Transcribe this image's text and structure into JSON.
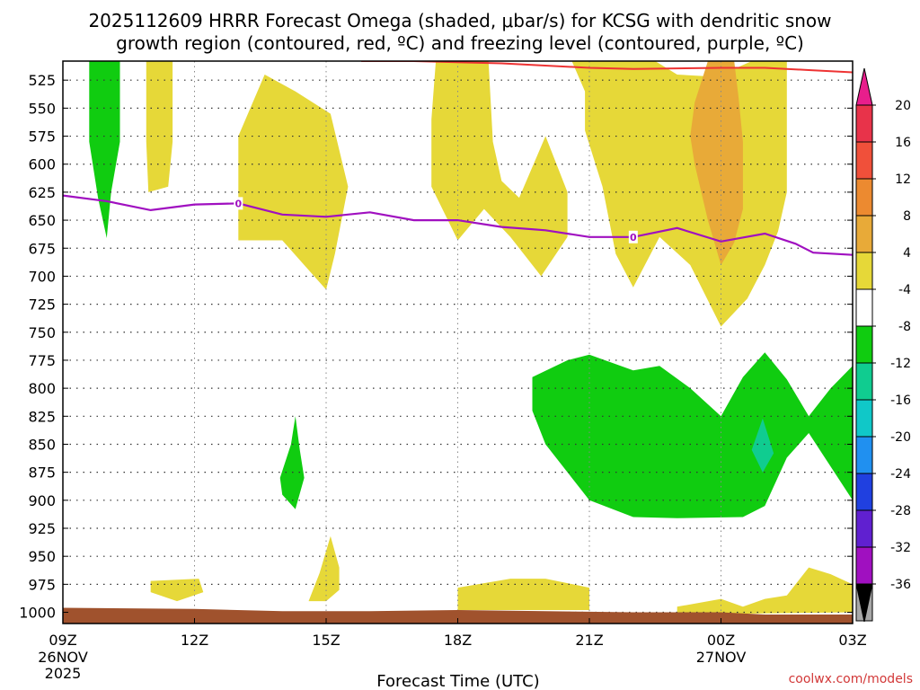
{
  "chart_data": {
    "type": "time-height cross section",
    "title_line1": "2025112609 HRRR Forecast Omega (shaded, μbar/s) for KCSG with dendritic snow",
    "title_line2": "growth region (contoured, red, ºC) and freezing level (contoured, purple, ºC)",
    "xlabel": "Forecast Time (UTC)",
    "credit": "coolwx.com/models",
    "x_range_hours": [
      0,
      18
    ],
    "y_range_hPa": [
      508,
      1010
    ],
    "x_ticks": [
      {
        "hour": 0,
        "label": "09Z",
        "sub1": "26NOV",
        "sub2": "2025"
      },
      {
        "hour": 3,
        "label": "12Z"
      },
      {
        "hour": 6,
        "label": "15Z"
      },
      {
        "hour": 9,
        "label": "18Z"
      },
      {
        "hour": 12,
        "label": "21Z"
      },
      {
        "hour": 15,
        "label": "00Z",
        "sub1": "27NOV"
      },
      {
        "hour": 18,
        "label": "03Z"
      }
    ],
    "y_ticks": [
      525,
      550,
      575,
      600,
      625,
      650,
      675,
      700,
      725,
      750,
      775,
      800,
      825,
      850,
      875,
      900,
      925,
      950,
      975,
      1000
    ],
    "colorbar": {
      "levels": [
        20,
        16,
        12,
        8,
        4,
        -4,
        -8,
        -12,
        -16,
        -20,
        -24,
        -28,
        -32,
        -36
      ],
      "colors": [
        "#e8334a",
        "#f0503a",
        "#ec8a30",
        "#e8aa38",
        "#e6d838",
        "#ffffff",
        "#10cc10",
        "#10cc90",
        "#10c8c8",
        "#2090f0",
        "#2040e0",
        "#6020d0",
        "#a010c0",
        "#a8a8a8"
      ],
      "top_cap_color": "#e81e8c",
      "bottom_cap_color": "#000000"
    },
    "shaded_regions": [
      {
        "fill": "#10cc10",
        "points": [
          [
            0.6,
            508
          ],
          [
            1.3,
            508
          ],
          [
            1.3,
            580
          ],
          [
            1.1,
            625
          ],
          [
            1.0,
            666
          ],
          [
            0.8,
            630
          ],
          [
            0.6,
            580
          ]
        ]
      },
      {
        "fill": "#e6d838",
        "points": [
          [
            1.9,
            508
          ],
          [
            2.5,
            508
          ],
          [
            2.5,
            580
          ],
          [
            2.4,
            620
          ],
          [
            1.95,
            625
          ],
          [
            1.9,
            580
          ]
        ]
      },
      {
        "fill": "#e6d838",
        "points": [
          [
            4.0,
            575
          ],
          [
            4.6,
            520
          ],
          [
            5.3,
            535
          ],
          [
            6.1,
            555
          ],
          [
            6.5,
            620
          ],
          [
            6.2,
            680
          ],
          [
            6.0,
            712
          ],
          [
            5.5,
            690
          ],
          [
            5.0,
            668
          ],
          [
            4.0,
            668
          ]
        ]
      },
      {
        "fill": "#e6d838",
        "points": [
          [
            8.5,
            508
          ],
          [
            9.7,
            508
          ],
          [
            9.8,
            580
          ],
          [
            10.0,
            615
          ],
          [
            10.4,
            630
          ],
          [
            11.0,
            575
          ],
          [
            11.5,
            625
          ],
          [
            11.5,
            665
          ],
          [
            10.9,
            700
          ],
          [
            10.2,
            665
          ],
          [
            9.6,
            640
          ],
          [
            9.0,
            668
          ],
          [
            8.4,
            620
          ],
          [
            8.4,
            560
          ]
        ]
      },
      {
        "fill": "#e6d838",
        "points": [
          [
            11.6,
            508
          ],
          [
            13.5,
            508
          ],
          [
            14.0,
            520
          ],
          [
            14.9,
            522
          ],
          [
            15.7,
            508
          ],
          [
            16.5,
            508
          ],
          [
            16.5,
            625
          ],
          [
            16.3,
            660
          ],
          [
            16.0,
            690
          ],
          [
            15.6,
            720
          ],
          [
            15.0,
            745
          ],
          [
            14.3,
            690
          ],
          [
            13.6,
            665
          ],
          [
            13.0,
            710
          ],
          [
            12.6,
            680
          ],
          [
            12.3,
            620
          ],
          [
            11.9,
            570
          ],
          [
            11.9,
            535
          ]
        ]
      },
      {
        "fill": "#e8aa38",
        "points": [
          [
            14.7,
            508
          ],
          [
            15.3,
            508
          ],
          [
            15.4,
            540
          ],
          [
            15.5,
            580
          ],
          [
            15.5,
            640
          ],
          [
            15.3,
            670
          ],
          [
            15.0,
            690
          ],
          [
            14.7,
            650
          ],
          [
            14.4,
            600
          ],
          [
            14.3,
            575
          ],
          [
            14.4,
            545
          ]
        ]
      },
      {
        "fill": "#e6d838",
        "points": [
          [
            2.0,
            972
          ],
          [
            3.1,
            970
          ],
          [
            3.2,
            982
          ],
          [
            2.6,
            990
          ],
          [
            2.0,
            982
          ]
        ]
      },
      {
        "fill": "#e6d838",
        "points": [
          [
            5.6,
            990
          ],
          [
            5.85,
            965
          ],
          [
            6.1,
            932
          ],
          [
            6.3,
            960
          ],
          [
            6.3,
            980
          ],
          [
            6.0,
            990
          ]
        ]
      },
      {
        "fill": "#e6d838",
        "points": [
          [
            9.0,
            978
          ],
          [
            10.2,
            970
          ],
          [
            11.0,
            970
          ],
          [
            12.0,
            978
          ],
          [
            12.0,
            998
          ],
          [
            9.0,
            998
          ]
        ]
      },
      {
        "fill": "#e6d838",
        "points": [
          [
            14.0,
            995
          ],
          [
            15.0,
            988
          ],
          [
            15.5,
            995
          ],
          [
            16.0,
            988
          ],
          [
            16.5,
            985
          ],
          [
            17.0,
            960
          ],
          [
            17.5,
            966
          ],
          [
            18.0,
            975
          ],
          [
            18.0,
            1000
          ],
          [
            14.0,
            1002
          ]
        ]
      },
      {
        "fill": "#10cc10",
        "points": [
          [
            4.95,
            880
          ],
          [
            5.2,
            850
          ],
          [
            5.3,
            825
          ],
          [
            5.4,
            855
          ],
          [
            5.5,
            880
          ],
          [
            5.3,
            908
          ],
          [
            5.0,
            895
          ]
        ]
      },
      {
        "fill": "#10cc10",
        "points": [
          [
            10.7,
            790
          ],
          [
            11.5,
            775
          ],
          [
            12.0,
            770
          ],
          [
            13.0,
            784
          ],
          [
            13.6,
            780
          ],
          [
            14.3,
            800
          ],
          [
            15.0,
            825
          ],
          [
            15.5,
            790
          ],
          [
            16.0,
            768
          ],
          [
            16.5,
            792
          ],
          [
            17.0,
            825
          ],
          [
            17.5,
            800
          ],
          [
            18.0,
            780
          ],
          [
            18.0,
            900
          ],
          [
            17.5,
            870
          ],
          [
            17.0,
            840
          ],
          [
            16.5,
            862
          ],
          [
            16.0,
            905
          ],
          [
            15.5,
            915
          ],
          [
            14.0,
            916
          ],
          [
            13.0,
            915
          ],
          [
            12.0,
            900
          ],
          [
            11.0,
            850
          ],
          [
            10.7,
            820
          ]
        ]
      },
      {
        "fill": "#10cc90",
        "points": [
          [
            15.7,
            855
          ],
          [
            15.95,
            827
          ],
          [
            16.2,
            858
          ],
          [
            15.95,
            875
          ]
        ]
      }
    ],
    "surface_fill": "#a0522d",
    "surface_points": [
      [
        0,
        996
      ],
      [
        3,
        997
      ],
      [
        5,
        999
      ],
      [
        7,
        999
      ],
      [
        9,
        998
      ],
      [
        11,
        999
      ],
      [
        13,
        1000
      ],
      [
        15,
        1000
      ],
      [
        16,
        1002
      ],
      [
        18,
        1002
      ]
    ],
    "dgz_line": {
      "color": "#ee3333",
      "points": [
        [
          6.8,
          508
        ],
        [
          8,
          508
        ],
        [
          10,
          510
        ],
        [
          12,
          514
        ],
        [
          13,
          515
        ],
        [
          15,
          514
        ],
        [
          16,
          514
        ],
        [
          17,
          516
        ],
        [
          18,
          518
        ]
      ]
    },
    "freezing_line": {
      "color": "#a010c0",
      "label": "0",
      "label_at_hours": [
        4.0,
        13.0
      ],
      "points": [
        [
          0,
          628
        ],
        [
          1,
          633
        ],
        [
          2,
          641
        ],
        [
          3,
          636
        ],
        [
          4,
          635
        ],
        [
          5,
          645
        ],
        [
          6,
          647
        ],
        [
          7,
          643
        ],
        [
          8,
          650
        ],
        [
          9,
          650
        ],
        [
          10,
          656
        ],
        [
          11,
          659
        ],
        [
          12,
          665
        ],
        [
          13,
          665
        ],
        [
          14,
          657
        ],
        [
          15,
          669
        ],
        [
          16,
          662
        ],
        [
          16.7,
          671
        ],
        [
          17.1,
          679
        ],
        [
          18,
          681
        ]
      ]
    }
  }
}
